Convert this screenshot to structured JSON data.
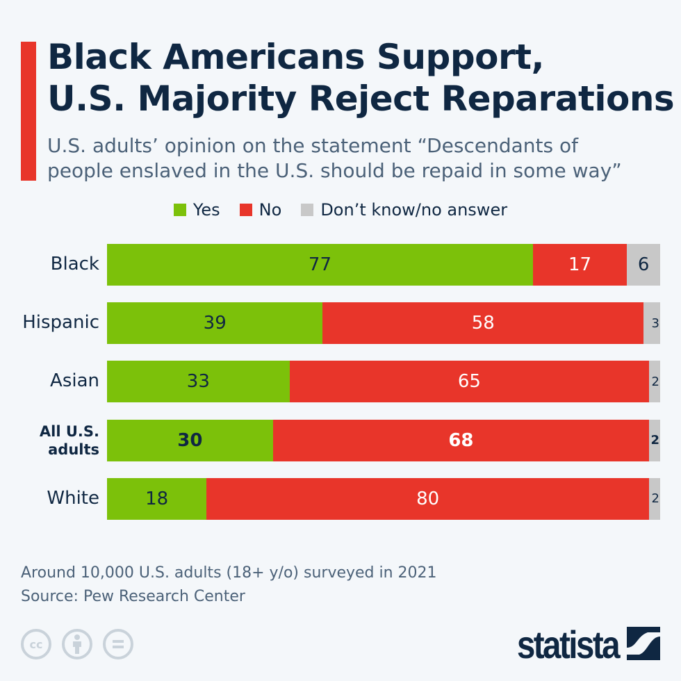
{
  "title_lines": [
    "Black Americans Support,",
    "U.S. Majority Reject Reparations"
  ],
  "subtitle_lines": [
    "U.S. adults’ opinion on the statement “Descendants of",
    "people enslaved in the U.S. should be repaid in some way”"
  ],
  "colors": {
    "accent": "#e8352a",
    "yes": "#7cc10a",
    "no": "#e8352a",
    "dk": "#c8c8c8"
  },
  "chart_data": {
    "type": "bar",
    "orientation": "horizontal",
    "stacked": true,
    "categories": [
      "Black",
      "Hispanic",
      "Asian",
      "All U.S. adults",
      "White"
    ],
    "highlighted_category": "All U.S. adults",
    "series": [
      {
        "name": "Yes",
        "values": [
          77,
          39,
          33,
          30,
          18
        ]
      },
      {
        "name": "No",
        "values": [
          17,
          58,
          65,
          68,
          80
        ]
      },
      {
        "name": "Don’t know/no answer",
        "values": [
          6,
          3,
          2,
          2,
          2
        ]
      }
    ],
    "xlim": [
      0,
      100
    ],
    "grid": false,
    "legend": "top-center"
  },
  "footer": {
    "note": "Around 10,000 U.S. adults (18+ y/o) surveyed in 2021",
    "source": "Source: Pew Research Center",
    "license_icons": [
      "cc-icon",
      "attribution-icon",
      "no-derivatives-icon"
    ],
    "logo": "statista"
  }
}
